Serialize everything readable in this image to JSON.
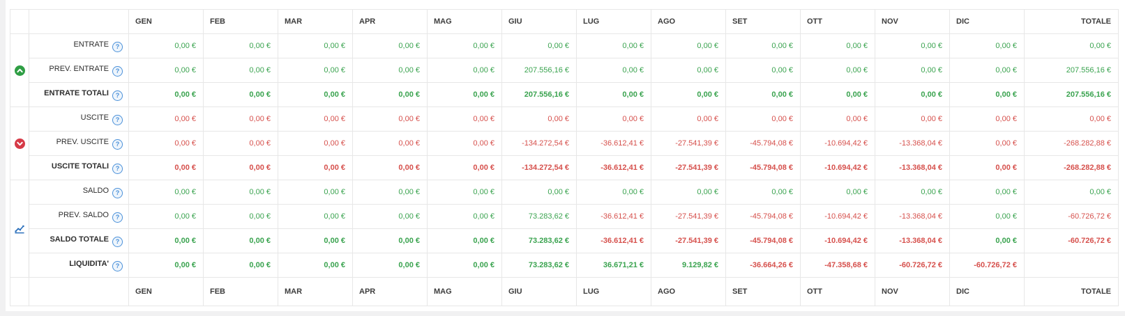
{
  "colors": {
    "positive": "#3aa34f",
    "negative": "#d6504c",
    "help": "#4a90d9",
    "icon_up": "#2f9e44",
    "icon_down": "#d63a47",
    "icon_chart": "#2a6fbb"
  },
  "table": {
    "months": [
      "GEN",
      "FEB",
      "MAR",
      "APR",
      "MAG",
      "GIU",
      "LUG",
      "AGO",
      "SET",
      "OTT",
      "NOV",
      "DIC"
    ],
    "total_label": "TOTALE",
    "help_glyph": "?",
    "groups": [
      {
        "name": "entrate",
        "icon": "chevron-up-circle",
        "color_mode": "positive",
        "rows": [
          {
            "label": "ENTRATE",
            "bold": false,
            "values": [
              "0,00 €",
              "0,00 €",
              "0,00 €",
              "0,00 €",
              "0,00 €",
              "0,00 €",
              "0,00 €",
              "0,00 €",
              "0,00 €",
              "0,00 €",
              "0,00 €",
              "0,00 €",
              "0,00 €"
            ]
          },
          {
            "label": "PREV. ENTRATE",
            "bold": false,
            "values": [
              "0,00 €",
              "0,00 €",
              "0,00 €",
              "0,00 €",
              "0,00 €",
              "207.556,16 €",
              "0,00 €",
              "0,00 €",
              "0,00 €",
              "0,00 €",
              "0,00 €",
              "0,00 €",
              "207.556,16 €"
            ]
          },
          {
            "label": "ENTRATE TOTALI",
            "bold": true,
            "values": [
              "0,00 €",
              "0,00 €",
              "0,00 €",
              "0,00 €",
              "0,00 €",
              "207.556,16 €",
              "0,00 €",
              "0,00 €",
              "0,00 €",
              "0,00 €",
              "0,00 €",
              "0,00 €",
              "207.556,16 €"
            ]
          }
        ]
      },
      {
        "name": "uscite",
        "icon": "chevron-down-circle",
        "color_mode": "negative",
        "rows": [
          {
            "label": "USCITE",
            "bold": false,
            "values": [
              "0,00 €",
              "0,00 €",
              "0,00 €",
              "0,00 €",
              "0,00 €",
              "0,00 €",
              "0,00 €",
              "0,00 €",
              "0,00 €",
              "0,00 €",
              "0,00 €",
              "0,00 €",
              "0,00 €"
            ]
          },
          {
            "label": "PREV. USCITE",
            "bold": false,
            "values": [
              "0,00 €",
              "0,00 €",
              "0,00 €",
              "0,00 €",
              "0,00 €",
              "-134.272,54 €",
              "-36.612,41 €",
              "-27.541,39 €",
              "-45.794,08 €",
              "-10.694,42 €",
              "-13.368,04 €",
              "0,00 €",
              "-268.282,88 €"
            ]
          },
          {
            "label": "USCITE TOTALI",
            "bold": true,
            "values": [
              "0,00 €",
              "0,00 €",
              "0,00 €",
              "0,00 €",
              "0,00 €",
              "-134.272,54 €",
              "-36.612,41 €",
              "-27.541,39 €",
              "-45.794,08 €",
              "-10.694,42 €",
              "-13.368,04 €",
              "0,00 €",
              "-268.282,88 €"
            ]
          }
        ]
      },
      {
        "name": "saldo",
        "icon": "line-chart",
        "color_mode": "sign",
        "rows": [
          {
            "label": "SALDO",
            "bold": false,
            "values": [
              "0,00 €",
              "0,00 €",
              "0,00 €",
              "0,00 €",
              "0,00 €",
              "0,00 €",
              "0,00 €",
              "0,00 €",
              "0,00 €",
              "0,00 €",
              "0,00 €",
              "0,00 €",
              "0,00 €"
            ]
          },
          {
            "label": "PREV. SALDO",
            "bold": false,
            "values": [
              "0,00 €",
              "0,00 €",
              "0,00 €",
              "0,00 €",
              "0,00 €",
              "73.283,62 €",
              "-36.612,41 €",
              "-27.541,39 €",
              "-45.794,08 €",
              "-10.694,42 €",
              "-13.368,04 €",
              "0,00 €",
              "-60.726,72 €"
            ]
          },
          {
            "label": "SALDO TOTALE",
            "bold": true,
            "values": [
              "0,00 €",
              "0,00 €",
              "0,00 €",
              "0,00 €",
              "0,00 €",
              "73.283,62 €",
              "-36.612,41 €",
              "-27.541,39 €",
              "-45.794,08 €",
              "-10.694,42 €",
              "-13.368,04 €",
              "0,00 €",
              "-60.726,72 €"
            ]
          },
          {
            "label": "LIQUIDITA'",
            "bold": true,
            "values": [
              "0,00 €",
              "0,00 €",
              "0,00 €",
              "0,00 €",
              "0,00 €",
              "73.283,62 €",
              "36.671,21 €",
              "9.129,82 €",
              "-36.664,26 €",
              "-47.358,68 €",
              "-60.726,72 €",
              "-60.726,72 €",
              ""
            ]
          }
        ]
      }
    ]
  }
}
